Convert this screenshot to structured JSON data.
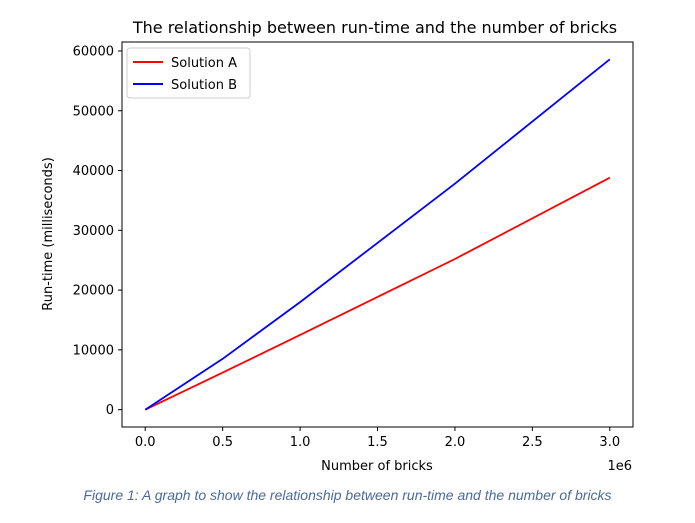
{
  "chart_data": {
    "type": "line",
    "title": "The relationship between run-time and the number of bricks",
    "xlabel": "Number of bricks",
    "ylabel": "Run-time (milliseconds)",
    "x_offset_label": "1e6",
    "xlim": [
      -0.15,
      3.15
    ],
    "ylim": [
      -2900,
      61500
    ],
    "x_ticks": [
      0.0,
      0.5,
      1.0,
      1.5,
      2.0,
      2.5,
      3.0
    ],
    "x_tick_labels": [
      "0.0",
      "0.5",
      "1.0",
      "1.5",
      "2.0",
      "2.5",
      "3.0"
    ],
    "y_ticks": [
      0,
      10000,
      20000,
      30000,
      40000,
      50000,
      60000
    ],
    "y_tick_labels": [
      "0",
      "10000",
      "20000",
      "30000",
      "40000",
      "50000",
      "60000"
    ],
    "grid": false,
    "legend_position": "top-left",
    "series": [
      {
        "name": "Solution A",
        "color": "#ff0000",
        "x": [
          0.0,
          0.5,
          1.0,
          2.0,
          3.0
        ],
        "y": [
          0,
          6200,
          12500,
          25200,
          38800
        ]
      },
      {
        "name": "Solution B",
        "color": "#0000ff",
        "x": [
          0.0,
          0.5,
          1.0,
          2.0,
          3.0
        ],
        "y": [
          0,
          8500,
          18000,
          37800,
          58600
        ]
      }
    ]
  },
  "caption": "Figure 1: A graph to show the relationship between run-time and the number of bricks"
}
